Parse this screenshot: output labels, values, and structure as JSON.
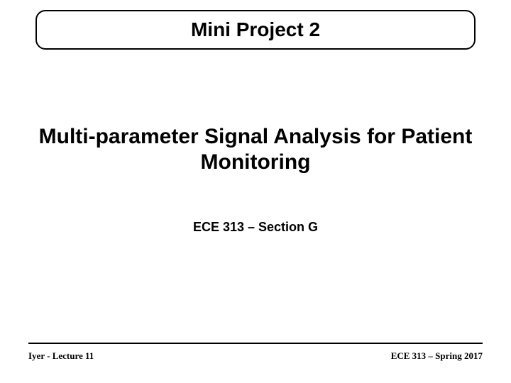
{
  "slide": {
    "title_box_text": "Mini Project 2",
    "main_heading": "Multi-parameter Signal Analysis for Patient Monitoring",
    "subtitle": "ECE 313 – Section G",
    "footer_left": "Iyer - Lecture 11",
    "footer_right": "ECE 313 – Spring 2017"
  },
  "style": {
    "background_color": "#ffffff",
    "text_color": "#000000",
    "border_color": "#000000",
    "title_fontsize": 28,
    "heading_fontsize": 30,
    "subtitle_fontsize": 18,
    "footer_fontsize": 13,
    "title_box_border_radius": 14,
    "title_box_border_width": 2.5,
    "footer_line_width": 2.5,
    "title_font_family": "Arial, Helvetica, sans-serif",
    "footer_font_family": "\"Times New Roman\", Times, serif"
  }
}
